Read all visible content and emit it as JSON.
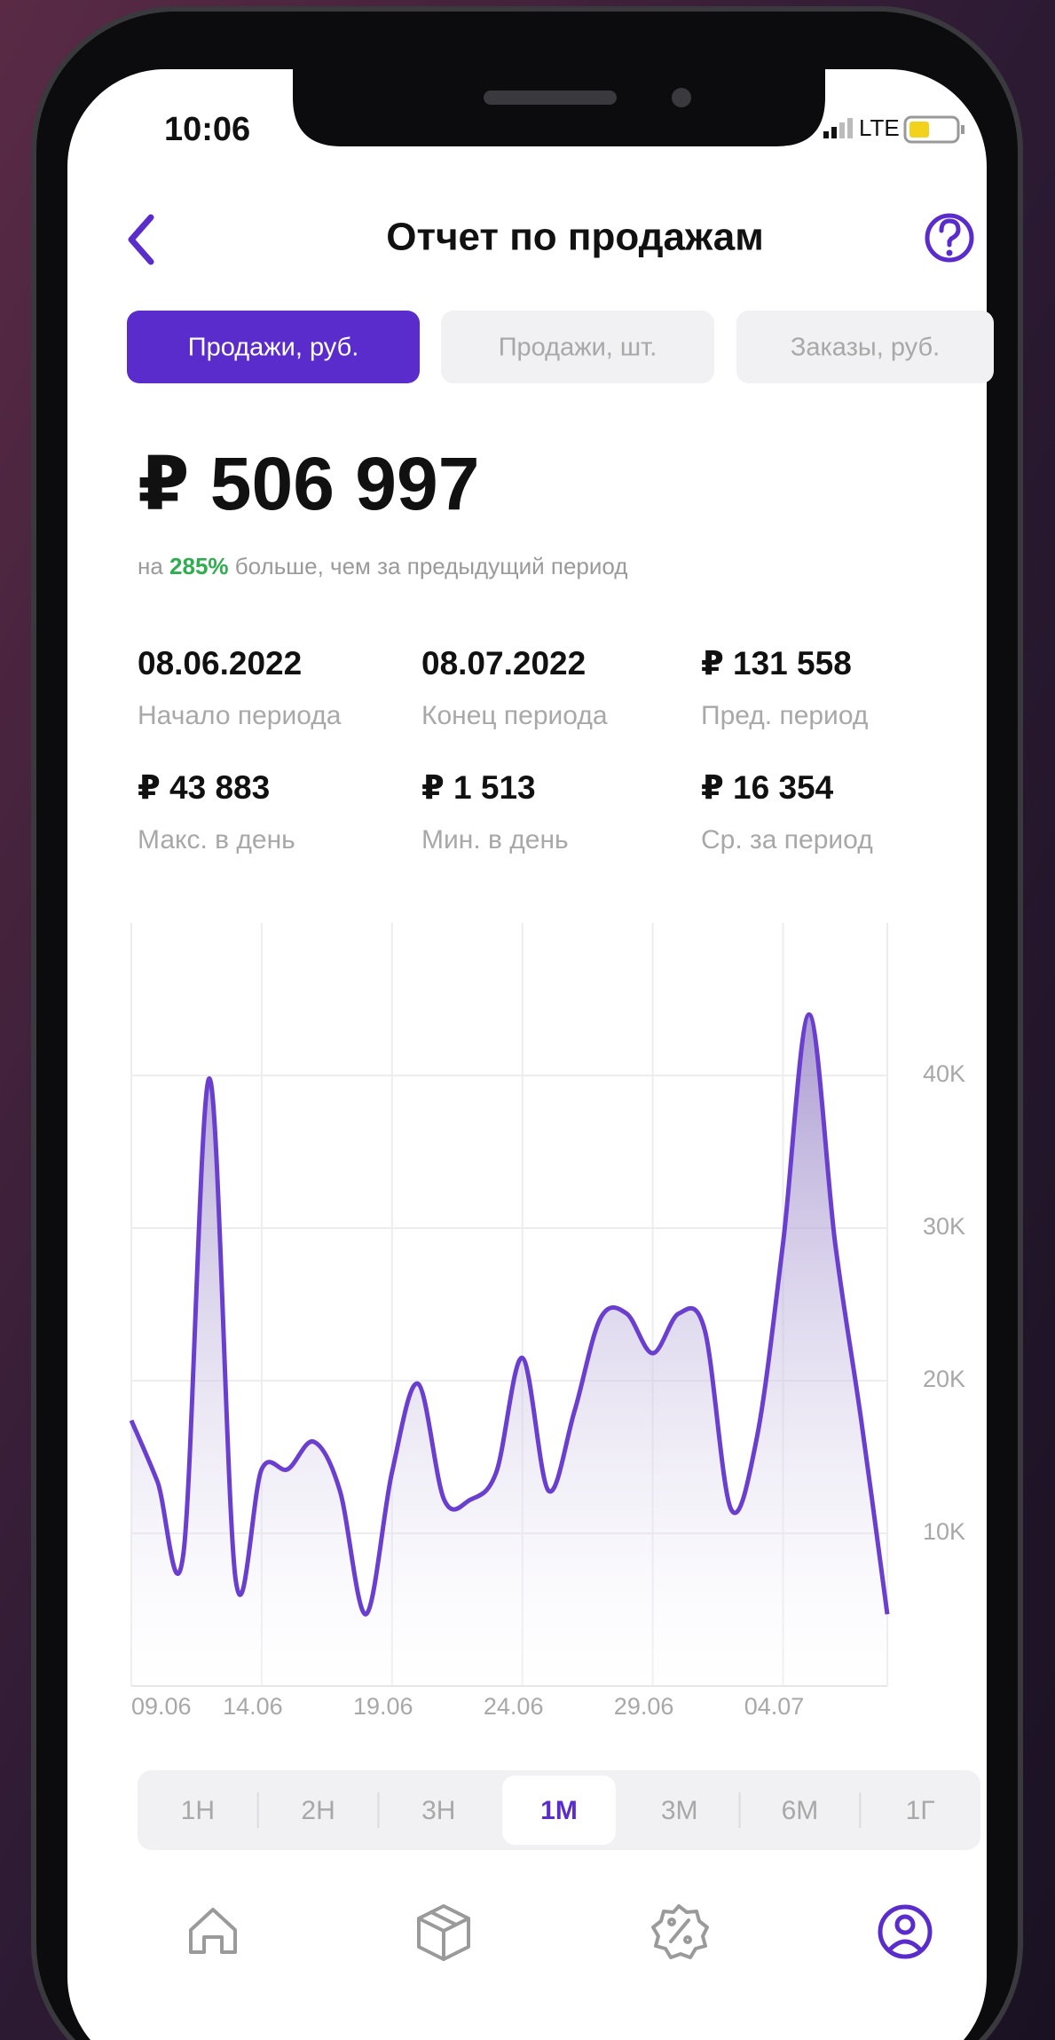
{
  "status_bar": {
    "time": "10:06",
    "network": "LTE"
  },
  "header": {
    "title": "Отчет по продажам"
  },
  "tabs": {
    "items": [
      "Продажи, руб.",
      "Продажи, шт.",
      "Заказы, руб."
    ],
    "active": 0
  },
  "summary": {
    "total": "₽ 506 997",
    "change_prefix": "на ",
    "change_value": "285%",
    "change_suffix": " больше, чем за предыдущий период"
  },
  "stats": [
    {
      "value": "08.06.2022",
      "label": "Начало периода"
    },
    {
      "value": "08.07.2022",
      "label": "Конец периода"
    },
    {
      "value": "₽ 131 558",
      "label": "Пред. период"
    },
    {
      "value": "₽ 43 883",
      "label": "Макс. в день"
    },
    {
      "value": "₽ 1 513",
      "label": "Мин. в день"
    },
    {
      "value": "₽ 16 354",
      "label": "Ср. за период"
    }
  ],
  "chart_data": {
    "type": "line",
    "categories": [
      "09.06",
      null,
      null,
      null,
      null,
      "14.06",
      null,
      null,
      null,
      null,
      "19.06",
      null,
      null,
      null,
      null,
      "24.06",
      null,
      null,
      null,
      null,
      "29.06",
      null,
      null,
      null,
      null,
      "04.07",
      null,
      null,
      null,
      null
    ],
    "values": [
      17400,
      13400,
      8700,
      39800,
      7000,
      14200,
      14200,
      16000,
      12800,
      4700,
      14000,
      19800,
      12200,
      12200,
      14000,
      21500,
      12800,
      18000,
      24100,
      24400,
      21800,
      24400,
      23300,
      11600,
      16300,
      29000,
      44000,
      29000,
      17400,
      4700
    ],
    "color": "#6a3fd0",
    "ylim": [
      0,
      50000
    ],
    "yticks": [
      {
        "value": 10000,
        "label": "10K"
      },
      {
        "value": 20000,
        "label": "20K"
      },
      {
        "value": 30000,
        "label": "30K"
      },
      {
        "value": 40000,
        "label": "40K"
      }
    ],
    "grid": true
  },
  "periods": {
    "items": [
      "1Н",
      "2Н",
      "3Н",
      "1М",
      "3М",
      "6М",
      "1Г"
    ],
    "active": 3
  }
}
